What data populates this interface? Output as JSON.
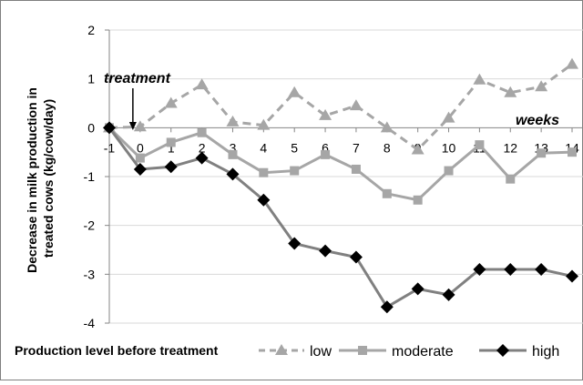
{
  "chart_data": {
    "type": "line",
    "title": "",
    "xlabel": "weeks",
    "ylabel": "Decrease in milk production in treated cows (kg/cow/day)",
    "ylabel_lines": [
      "Decrease in milk production in",
      "treated cows (kg/cow/day)"
    ],
    "x": [
      -1,
      0,
      1,
      2,
      3,
      4,
      5,
      6,
      7,
      8,
      9,
      10,
      11,
      12,
      13,
      14
    ],
    "xlim": [
      -1,
      14
    ],
    "ylim": [
      -4,
      2
    ],
    "yticks": [
      2,
      1,
      0,
      -1,
      -2,
      -3,
      -4
    ],
    "grid": "horizontal",
    "series": [
      {
        "name": "low",
        "color": "#a6a6a6",
        "line_style": "dashed",
        "marker": "triangle",
        "values": [
          0,
          0.02,
          0.5,
          0.88,
          0.12,
          0.05,
          0.72,
          0.25,
          0.45,
          0.0,
          -0.45,
          0.2,
          0.98,
          0.72,
          0.84,
          1.3
        ]
      },
      {
        "name": "moderate",
        "color": "#a6a6a6",
        "line_style": "solid",
        "marker": "square",
        "values": [
          0,
          -0.62,
          -0.3,
          -0.1,
          -0.55,
          -0.92,
          -0.88,
          -0.55,
          -0.85,
          -1.35,
          -1.48,
          -0.88,
          -0.35,
          -1.05,
          -0.52,
          -0.5
        ]
      },
      {
        "name": "high",
        "color": "#808080",
        "line_style": "solid",
        "marker": "diamond",
        "values": [
          0,
          -0.85,
          -0.8,
          -0.62,
          -0.95,
          -1.48,
          -2.37,
          -2.52,
          -2.65,
          -3.67,
          -3.3,
          -3.42,
          -2.9,
          -2.9,
          -2.9,
          -3.04
        ]
      }
    ],
    "annotations": [
      {
        "text": "treatment",
        "x": 0
      },
      {
        "text": "weeks"
      }
    ],
    "legend_title": "Production  level before treatment",
    "legend_placement": "bottom"
  }
}
